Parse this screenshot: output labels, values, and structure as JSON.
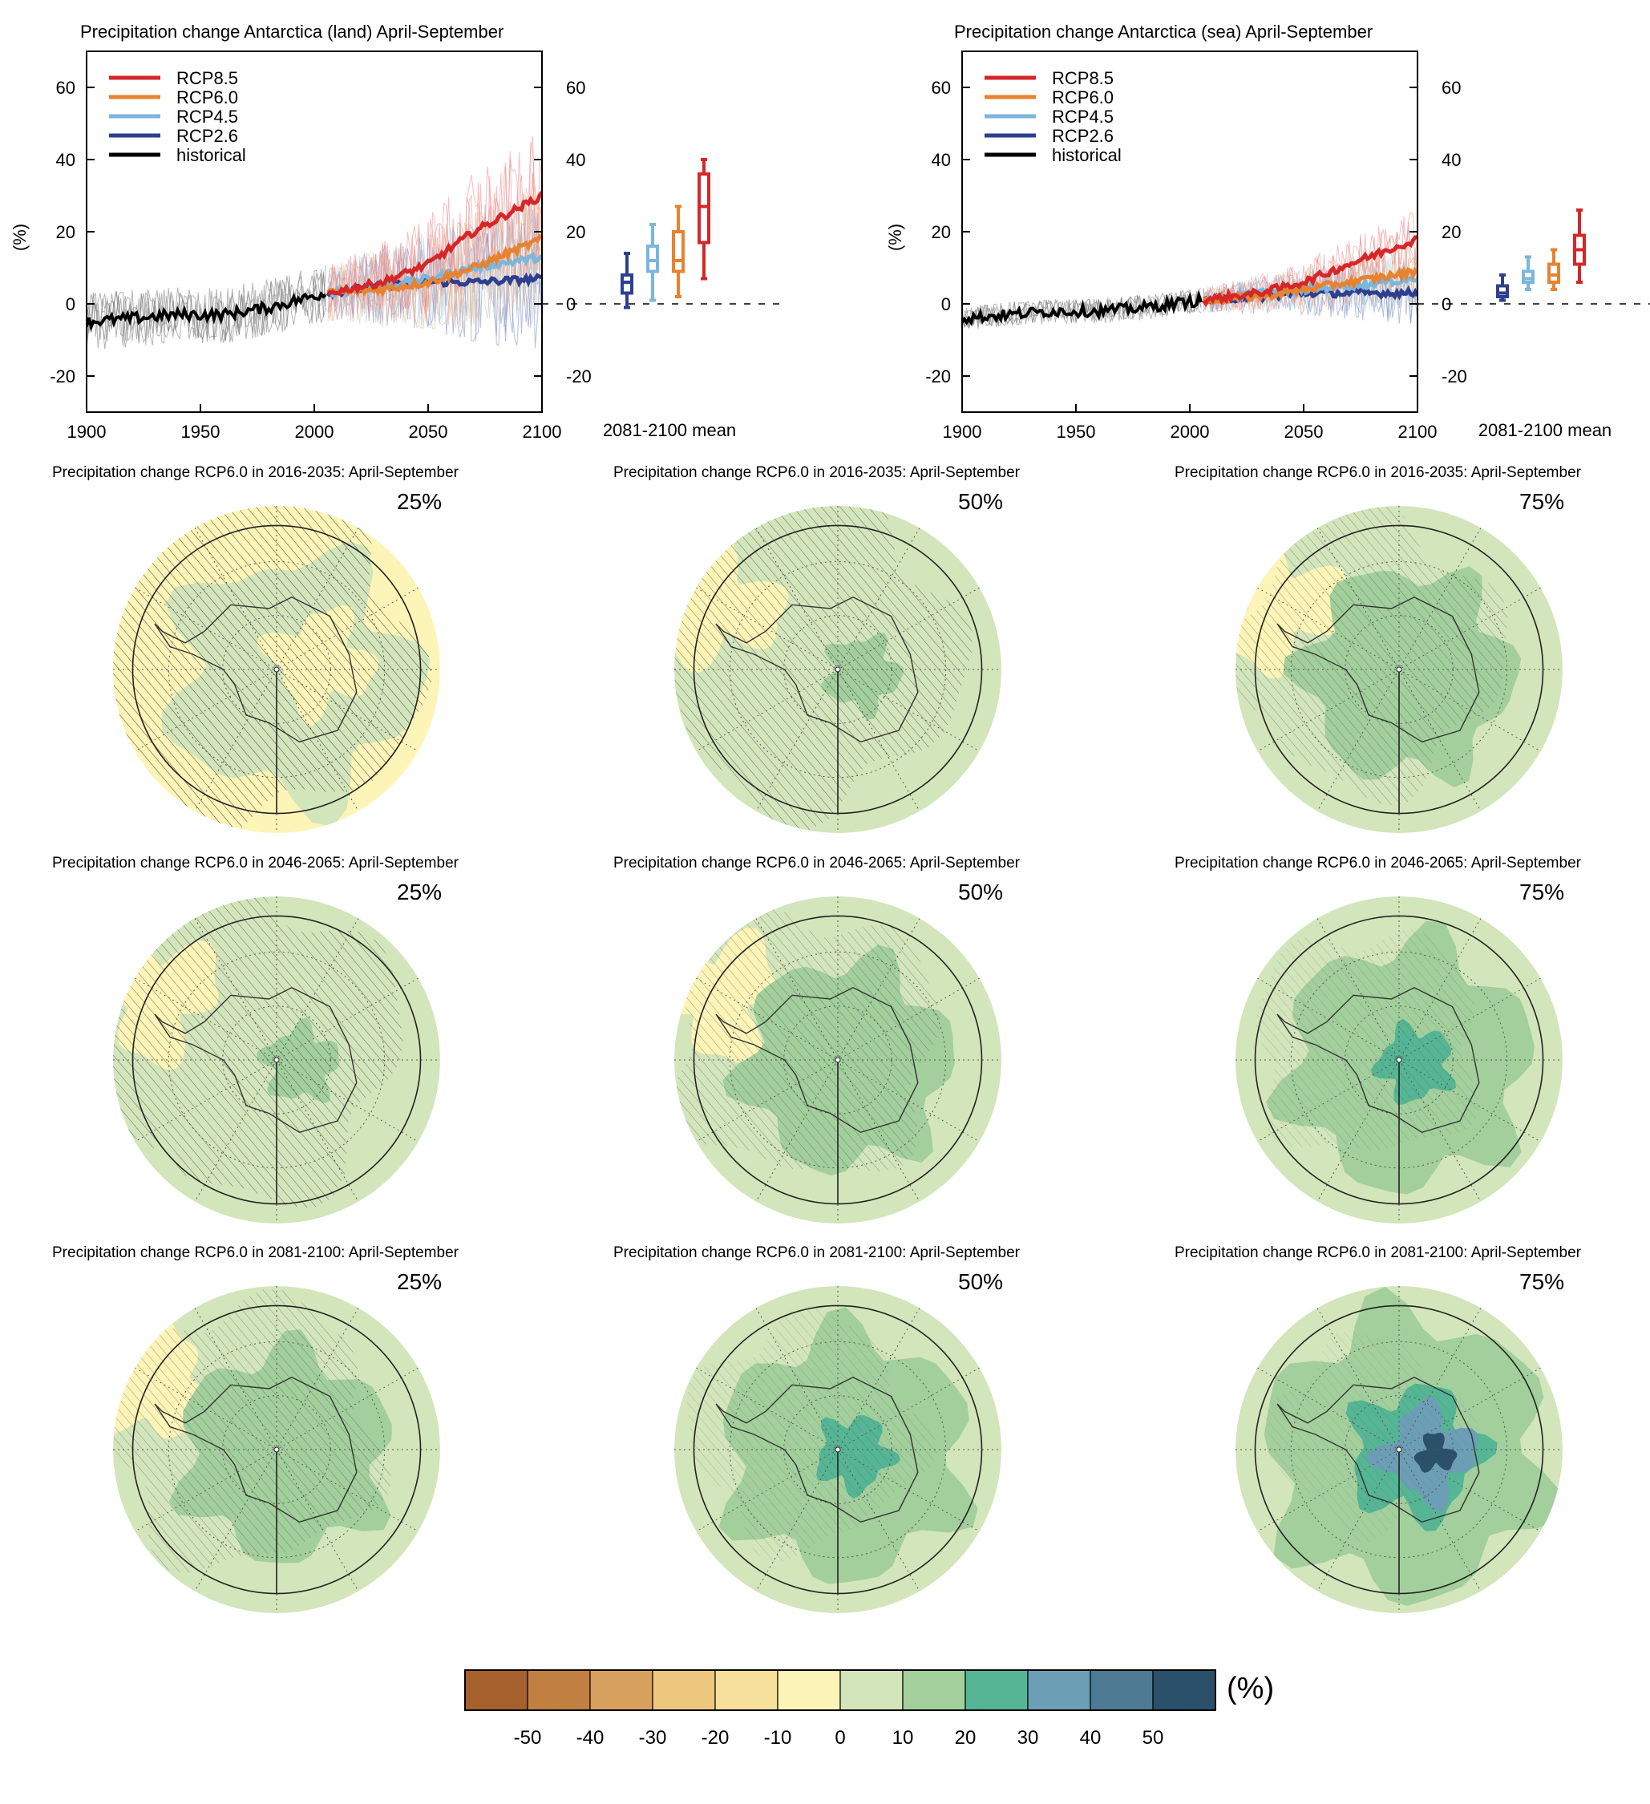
{
  "chart_data": [
    {
      "type": "line",
      "title": "Precipitation change Antarctica (land) April-September",
      "ylabel": "(%)",
      "xlim": [
        1900,
        2100
      ],
      "ylim": [
        -30,
        70
      ],
      "xticks": [
        "1900",
        "1950",
        "2000",
        "2050",
        "2100"
      ],
      "yticks": [
        "-20",
        "0",
        "20",
        "40",
        "60"
      ],
      "legend": [
        "RCP8.5",
        "RCP6.0",
        "RCP4.5",
        "RCP2.6",
        "historical"
      ],
      "legend_position": "top-left",
      "series": [
        {
          "name": "historical",
          "color": "#000000",
          "x": [
            1900,
            1920,
            1940,
            1960,
            1980,
            2005
          ],
          "values": [
            -5,
            -4,
            -3,
            -3,
            -1,
            3
          ]
        },
        {
          "name": "RCP2.6",
          "color": "#2e3f8f",
          "x": [
            2006,
            2030,
            2050,
            2070,
            2100
          ],
          "values": [
            3,
            5,
            6,
            6,
            7
          ]
        },
        {
          "name": "RCP4.5",
          "color": "#7bb6dc",
          "x": [
            2006,
            2030,
            2050,
            2070,
            2100
          ],
          "values": [
            3,
            5,
            7,
            10,
            13
          ]
        },
        {
          "name": "RCP6.0",
          "color": "#e8822f",
          "x": [
            2006,
            2030,
            2050,
            2070,
            2100
          ],
          "values": [
            3,
            4,
            6,
            10,
            18
          ]
        },
        {
          "name": "RCP8.5",
          "color": "#d62728",
          "x": [
            2006,
            2030,
            2050,
            2070,
            2100
          ],
          "values": [
            3,
            6,
            11,
            20,
            30
          ]
        }
      ],
      "boxplot": {
        "label": "2081-2100 mean",
        "boxes": [
          {
            "name": "RCP2.6",
            "color": "#2e3f8f",
            "min": -1,
            "q1": 3,
            "median": 6,
            "q3": 8,
            "max": 14
          },
          {
            "name": "RCP4.5",
            "color": "#7bb6dc",
            "min": 1,
            "q1": 9,
            "median": 12,
            "q3": 16,
            "max": 22
          },
          {
            "name": "RCP6.0",
            "color": "#e8822f",
            "min": 2,
            "q1": 9,
            "median": 12,
            "q3": 20,
            "max": 27
          },
          {
            "name": "RCP8.5",
            "color": "#d62728",
            "min": 7,
            "q1": 17,
            "median": 27,
            "q3": 36,
            "max": 40
          }
        ]
      }
    },
    {
      "type": "line",
      "title": "Precipitation change Antarctica (sea) April-September",
      "ylabel": "(%)",
      "xlim": [
        1900,
        2100
      ],
      "ylim": [
        -30,
        70
      ],
      "xticks": [
        "1900",
        "1950",
        "2000",
        "2050",
        "2100"
      ],
      "yticks": [
        "-20",
        "0",
        "20",
        "40",
        "60"
      ],
      "legend": [
        "RCP8.5",
        "RCP6.0",
        "RCP4.5",
        "RCP2.6",
        "historical"
      ],
      "legend_position": "top-left",
      "series": [
        {
          "name": "historical",
          "color": "#000000",
          "x": [
            1900,
            1920,
            1940,
            1960,
            1980,
            2005
          ],
          "values": [
            -4,
            -3,
            -2,
            -2,
            -1,
            1
          ]
        },
        {
          "name": "RCP2.6",
          "color": "#2e3f8f",
          "x": [
            2006,
            2030,
            2050,
            2070,
            2100
          ],
          "values": [
            1,
            2,
            3,
            3,
            3
          ]
        },
        {
          "name": "RCP4.5",
          "color": "#7bb6dc",
          "x": [
            2006,
            2030,
            2050,
            2070,
            2100
          ],
          "values": [
            1,
            3,
            4,
            5,
            7
          ]
        },
        {
          "name": "RCP6.0",
          "color": "#e8822f",
          "x": [
            2006,
            2030,
            2050,
            2070,
            2100
          ],
          "values": [
            1,
            2,
            4,
            6,
            9
          ]
        },
        {
          "name": "RCP8.5",
          "color": "#d62728",
          "x": [
            2006,
            2030,
            2050,
            2070,
            2100
          ],
          "values": [
            1,
            3,
            6,
            11,
            18
          ]
        }
      ],
      "boxplot": {
        "label": "2081-2100 mean",
        "boxes": [
          {
            "name": "RCP2.6",
            "color": "#2e3f8f",
            "min": 1,
            "q1": 2,
            "median": 3,
            "q3": 5,
            "max": 8
          },
          {
            "name": "RCP4.5",
            "color": "#7bb6dc",
            "min": 4,
            "q1": 6,
            "median": 7,
            "q3": 9,
            "max": 13
          },
          {
            "name": "RCP6.0",
            "color": "#e8822f",
            "min": 4,
            "q1": 6,
            "median": 8,
            "q3": 11,
            "max": 15
          },
          {
            "name": "RCP8.5",
            "color": "#d62728",
            "min": 6,
            "q1": 11,
            "median": 15,
            "q3": 19,
            "max": 26
          }
        ]
      }
    },
    {
      "type": "heatmap",
      "projection": "south polar stereographic",
      "maps": [
        {
          "title": "Precipitation change RCP6.0 in 2016-2035: April-September",
          "percentile": "25%",
          "level": 0
        },
        {
          "title": "Precipitation change RCP6.0 in 2016-2035: April-September",
          "percentile": "50%",
          "level": 1
        },
        {
          "title": "Precipitation change RCP6.0 in 2016-2035: April-September",
          "percentile": "75%",
          "level": 2
        },
        {
          "title": "Precipitation change RCP6.0 in 2046-2065: April-September",
          "percentile": "25%",
          "level": 1
        },
        {
          "title": "Precipitation change RCP6.0 in 2046-2065: April-September",
          "percentile": "50%",
          "level": 2
        },
        {
          "title": "Precipitation change RCP6.0 in 2046-2065: April-September",
          "percentile": "75%",
          "level": 3
        },
        {
          "title": "Precipitation change RCP6.0 in 2081-2100: April-September",
          "percentile": "25%",
          "level": 2
        },
        {
          "title": "Precipitation change RCP6.0 in 2081-2100: April-September",
          "percentile": "50%",
          "level": 3
        },
        {
          "title": "Precipitation change RCP6.0 in 2081-2100: April-September",
          "percentile": "75%",
          "level": 4
        }
      ],
      "colorbar": {
        "unit": "(%)",
        "labels": [
          "-50",
          "-40",
          "-30",
          "-20",
          "-10",
          "0",
          "10",
          "20",
          "30",
          "40",
          "50"
        ],
        "colors": [
          "#a6602c",
          "#c17f41",
          "#d7a05f",
          "#eec77f",
          "#f6e09c",
          "#fdf4b7",
          "#d3e5bb",
          "#a2cf9c",
          "#55b594",
          "#6c9fb6",
          "#4e7a93",
          "#2b5069"
        ]
      }
    }
  ]
}
